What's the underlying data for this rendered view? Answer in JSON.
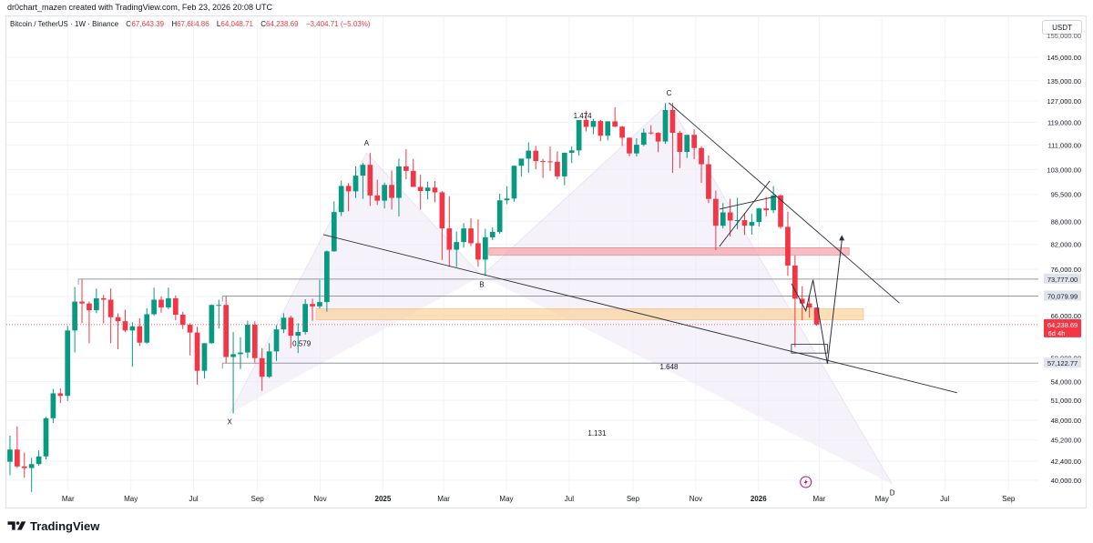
{
  "header": {
    "credit": "dr0chart_mazen created with TradingView.com, Feb 23, 2026 20:08 UTC",
    "symbol": "Bitcoin / TetherUS · 1W · Binance",
    "open_label": "O",
    "open": "67,643.39",
    "high_label": "H",
    "high": "67,684.86",
    "low_label": "L",
    "low": "64,048.71",
    "close_label": "C",
    "close": "64,238.69",
    "change": "−3,404.71 (−5.03%)",
    "currency": "USDT"
  },
  "brand": {
    "name": "TradingView",
    "icon": "tradingview-logo-icon"
  },
  "colors": {
    "up": "#089981",
    "down": "#f23645",
    "grid": "#f0f3fa",
    "pattern_fill": "#ede7f6",
    "resistance_zone": "#f7a3ab",
    "support_zone": "#fbd39a",
    "level_line": "#9598a1",
    "trendline": "#2a2e39",
    "price_tag": "#f23645"
  },
  "chart_data": {
    "type": "candlestick",
    "symbol": "BTCUSDT",
    "interval": "1W",
    "exchange": "Binance",
    "y_axis": {
      "ticks": [
        "145,000.00",
        "135,000.00",
        "127,000.00",
        "119,000.00",
        "111,000.00",
        "103,000.00",
        "95,500.00",
        "88,000.00",
        "82,000.00",
        "76,000.00",
        "70,000.00",
        "66,000.00",
        "58,000.00",
        "54,000.00",
        "51,000.00",
        "48,000.00",
        "45,200.00",
        "42,400.00",
        "40,000.00"
      ],
      "tick_values": [
        145000,
        135000,
        127000,
        119000,
        111000,
        103000,
        95500,
        88000,
        82000,
        76000,
        70000,
        66000,
        58000,
        54000,
        51000,
        48000,
        45200,
        42400,
        40000
      ],
      "top_tick": "155,000.00",
      "top_tick_value": 155000,
      "scale": "log",
      "range": [
        39000,
        158000
      ]
    },
    "x_axis": {
      "ticks": [
        "Mar",
        "May",
        "Jul",
        "Sep",
        "Nov",
        "2025",
        "Mar",
        "May",
        "Jul",
        "Sep",
        "Nov",
        "2026",
        "Mar",
        "May",
        "Jul",
        "Sep"
      ],
      "bold": [
        false,
        false,
        false,
        false,
        false,
        true,
        false,
        false,
        false,
        false,
        false,
        true,
        false,
        false,
        false,
        false
      ],
      "tick_dates": [
        "2024-03-01",
        "2024-05-01",
        "2024-07-01",
        "2024-09-01",
        "2024-11-01",
        "2025-01-01",
        "2025-03-01",
        "2025-05-01",
        "2025-07-01",
        "2025-09-01",
        "2025-11-01",
        "2026-01-01",
        "2026-03-01",
        "2026-05-01",
        "2026-07-01",
        "2026-09-01"
      ],
      "range": [
        "2024-01-01",
        "2026-09-30"
      ]
    },
    "candles": [
      {
        "t": "2024-01-01",
        "o": 42300,
        "h": 45800,
        "l": 40600,
        "c": 43900
      },
      {
        "t": "2024-01-08",
        "o": 43900,
        "h": 47100,
        "l": 41500,
        "c": 41700
      },
      {
        "t": "2024-01-15",
        "o": 41700,
        "h": 43500,
        "l": 40300,
        "c": 41500
      },
      {
        "t": "2024-01-22",
        "o": 41500,
        "h": 42800,
        "l": 38600,
        "c": 42000
      },
      {
        "t": "2024-01-29",
        "o": 42000,
        "h": 43800,
        "l": 41800,
        "c": 43000
      },
      {
        "t": "2024-02-05",
        "o": 43000,
        "h": 48500,
        "l": 42600,
        "c": 48300
      },
      {
        "t": "2024-02-12",
        "o": 48300,
        "h": 52800,
        "l": 47600,
        "c": 52100
      },
      {
        "t": "2024-02-19",
        "o": 52100,
        "h": 52900,
        "l": 50600,
        "c": 51700
      },
      {
        "t": "2024-02-26",
        "o": 51700,
        "h": 64000,
        "l": 50900,
        "c": 63100
      },
      {
        "t": "2024-03-04",
        "o": 63100,
        "h": 72000,
        "l": 59000,
        "c": 68900
      },
      {
        "t": "2024-03-11",
        "o": 68900,
        "h": 73777,
        "l": 64500,
        "c": 68500
      },
      {
        "t": "2024-03-18",
        "o": 68500,
        "h": 68900,
        "l": 60700,
        "c": 67100
      },
      {
        "t": "2024-03-25",
        "o": 67100,
        "h": 71700,
        "l": 66500,
        "c": 69600
      },
      {
        "t": "2024-04-01",
        "o": 69600,
        "h": 70300,
        "l": 64500,
        "c": 69300
      },
      {
        "t": "2024-04-08",
        "o": 69300,
        "h": 71700,
        "l": 60700,
        "c": 65700
      },
      {
        "t": "2024-04-15",
        "o": 65700,
        "h": 66500,
        "l": 59600,
        "c": 64900
      },
      {
        "t": "2024-04-22",
        "o": 64900,
        "h": 67200,
        "l": 62800,
        "c": 63100
      },
      {
        "t": "2024-04-29",
        "o": 63100,
        "h": 64700,
        "l": 56500,
        "c": 63900
      },
      {
        "t": "2024-05-06",
        "o": 63900,
        "h": 65500,
        "l": 60200,
        "c": 60800
      },
      {
        "t": "2024-05-13",
        "o": 60800,
        "h": 67500,
        "l": 60600,
        "c": 66300
      },
      {
        "t": "2024-05-20",
        "o": 66300,
        "h": 71900,
        "l": 66000,
        "c": 69300
      },
      {
        "t": "2024-05-27",
        "o": 69300,
        "h": 70000,
        "l": 66600,
        "c": 67700
      },
      {
        "t": "2024-06-03",
        "o": 67700,
        "h": 71900,
        "l": 67300,
        "c": 69600
      },
      {
        "t": "2024-06-10",
        "o": 69600,
        "h": 70200,
        "l": 65100,
        "c": 66200
      },
      {
        "t": "2024-06-17",
        "o": 66200,
        "h": 66800,
        "l": 63400,
        "c": 64200
      },
      {
        "t": "2024-06-24",
        "o": 64200,
        "h": 64500,
        "l": 58500,
        "c": 62700
      },
      {
        "t": "2024-07-01",
        "o": 62700,
        "h": 63800,
        "l": 53500,
        "c": 55800
      },
      {
        "t": "2024-07-08",
        "o": 55800,
        "h": 60100,
        "l": 54500,
        "c": 60700
      },
      {
        "t": "2024-07-15",
        "o": 60700,
        "h": 68300,
        "l": 60600,
        "c": 68200
      },
      {
        "t": "2024-07-22",
        "o": 68200,
        "h": 69300,
        "l": 63500,
        "c": 68200
      },
      {
        "t": "2024-07-29",
        "o": 68200,
        "h": 70000,
        "l": 57100,
        "c": 58200
      },
      {
        "t": "2024-08-05",
        "o": 58200,
        "h": 62800,
        "l": 49000,
        "c": 58700
      },
      {
        "t": "2024-08-12",
        "o": 58700,
        "h": 61800,
        "l": 56100,
        "c": 59000
      },
      {
        "t": "2024-08-19",
        "o": 59000,
        "h": 65000,
        "l": 58000,
        "c": 64200
      },
      {
        "t": "2024-08-26",
        "o": 64200,
        "h": 64900,
        "l": 57200,
        "c": 58000
      },
      {
        "t": "2024-09-02",
        "o": 58000,
        "h": 59800,
        "l": 52500,
        "c": 54800
      },
      {
        "t": "2024-09-09",
        "o": 54800,
        "h": 60700,
        "l": 54600,
        "c": 59200
      },
      {
        "t": "2024-09-16",
        "o": 59200,
        "h": 64100,
        "l": 57500,
        "c": 63300
      },
      {
        "t": "2024-09-23",
        "o": 63300,
        "h": 66500,
        "l": 62600,
        "c": 65600
      },
      {
        "t": "2024-09-30",
        "o": 65600,
        "h": 66000,
        "l": 59800,
        "c": 62100
      },
      {
        "t": "2024-10-07",
        "o": 62100,
        "h": 64500,
        "l": 58900,
        "c": 62800
      },
      {
        "t": "2024-10-14",
        "o": 62800,
        "h": 69400,
        "l": 62300,
        "c": 68400
      },
      {
        "t": "2024-10-21",
        "o": 68400,
        "h": 69500,
        "l": 65000,
        "c": 67900
      },
      {
        "t": "2024-10-28",
        "o": 67900,
        "h": 73600,
        "l": 67500,
        "c": 68800
      },
      {
        "t": "2024-11-04",
        "o": 68800,
        "h": 80500,
        "l": 66800,
        "c": 80300
      },
      {
        "t": "2024-11-11",
        "o": 80300,
        "h": 93500,
        "l": 80200,
        "c": 90500
      },
      {
        "t": "2024-11-18",
        "o": 90500,
        "h": 99600,
        "l": 89400,
        "c": 98000
      },
      {
        "t": "2024-11-25",
        "o": 98000,
        "h": 98900,
        "l": 90700,
        "c": 96400
      },
      {
        "t": "2024-12-02",
        "o": 96400,
        "h": 104000,
        "l": 94500,
        "c": 101100
      },
      {
        "t": "2024-12-09",
        "o": 101100,
        "h": 105100,
        "l": 94200,
        "c": 104500
      },
      {
        "t": "2024-12-16",
        "o": 104500,
        "h": 108400,
        "l": 92200,
        "c": 95200
      },
      {
        "t": "2024-12-23",
        "o": 95200,
        "h": 99900,
        "l": 92500,
        "c": 93700
      },
      {
        "t": "2024-12-30",
        "o": 93700,
        "h": 99000,
        "l": 91500,
        "c": 98300
      },
      {
        "t": "2025-01-06",
        "o": 98300,
        "h": 102700,
        "l": 91200,
        "c": 94500
      },
      {
        "t": "2025-01-13",
        "o": 94500,
        "h": 106500,
        "l": 89300,
        "c": 104000
      },
      {
        "t": "2025-01-20",
        "o": 104000,
        "h": 109600,
        "l": 100000,
        "c": 102600
      },
      {
        "t": "2025-01-27",
        "o": 102600,
        "h": 106400,
        "l": 97800,
        "c": 97700
      },
      {
        "t": "2025-02-03",
        "o": 97700,
        "h": 101400,
        "l": 91200,
        "c": 96500
      },
      {
        "t": "2025-02-10",
        "o": 96500,
        "h": 99300,
        "l": 94100,
        "c": 97500
      },
      {
        "t": "2025-02-17",
        "o": 97500,
        "h": 99500,
        "l": 93300,
        "c": 96100
      },
      {
        "t": "2025-02-24",
        "o": 96100,
        "h": 96500,
        "l": 78200,
        "c": 86100
      },
      {
        "t": "2025-03-03",
        "o": 86100,
        "h": 95000,
        "l": 76600,
        "c": 80700
      },
      {
        "t": "2025-03-10",
        "o": 80700,
        "h": 85300,
        "l": 76600,
        "c": 82600
      },
      {
        "t": "2025-03-17",
        "o": 82600,
        "h": 87500,
        "l": 81200,
        "c": 86100
      },
      {
        "t": "2025-03-24",
        "o": 86100,
        "h": 88800,
        "l": 81600,
        "c": 82300
      },
      {
        "t": "2025-03-31",
        "o": 82300,
        "h": 88500,
        "l": 76600,
        "c": 78300
      },
      {
        "t": "2025-04-07",
        "o": 78300,
        "h": 86000,
        "l": 74500,
        "c": 83800
      },
      {
        "t": "2025-04-14",
        "o": 83800,
        "h": 86400,
        "l": 83100,
        "c": 85200
      },
      {
        "t": "2025-04-21",
        "o": 85200,
        "h": 95700,
        "l": 84700,
        "c": 93800
      },
      {
        "t": "2025-04-28",
        "o": 93800,
        "h": 97900,
        "l": 92700,
        "c": 94300
      },
      {
        "t": "2025-05-05",
        "o": 94300,
        "h": 104300,
        "l": 93400,
        "c": 104200
      },
      {
        "t": "2025-05-12",
        "o": 104200,
        "h": 105800,
        "l": 100800,
        "c": 106500
      },
      {
        "t": "2025-05-19",
        "o": 106500,
        "h": 111900,
        "l": 102000,
        "c": 109100
      },
      {
        "t": "2025-05-26",
        "o": 109100,
        "h": 110700,
        "l": 103100,
        "c": 105700
      },
      {
        "t": "2025-06-02",
        "o": 105700,
        "h": 106400,
        "l": 100400,
        "c": 105600
      },
      {
        "t": "2025-06-09",
        "o": 105600,
        "h": 110500,
        "l": 102600,
        "c": 105500
      },
      {
        "t": "2025-06-16",
        "o": 105500,
        "h": 108900,
        "l": 100000,
        "c": 100900
      },
      {
        "t": "2025-06-23",
        "o": 100900,
        "h": 108500,
        "l": 98200,
        "c": 108400
      },
      {
        "t": "2025-06-30",
        "o": 108400,
        "h": 110500,
        "l": 105100,
        "c": 109200
      },
      {
        "t": "2025-07-07",
        "o": 109200,
        "h": 119500,
        "l": 107500,
        "c": 119800
      },
      {
        "t": "2025-07-14",
        "o": 119800,
        "h": 123200,
        "l": 115700,
        "c": 117300
      },
      {
        "t": "2025-07-21",
        "o": 117300,
        "h": 120200,
        "l": 114700,
        "c": 119400
      },
      {
        "t": "2025-07-28",
        "o": 119400,
        "h": 119800,
        "l": 112300,
        "c": 114200
      },
      {
        "t": "2025-08-04",
        "o": 114200,
        "h": 119300,
        "l": 112600,
        "c": 119300
      },
      {
        "t": "2025-08-11",
        "o": 119300,
        "h": 124500,
        "l": 117200,
        "c": 117400
      },
      {
        "t": "2025-08-18",
        "o": 117400,
        "h": 117600,
        "l": 110700,
        "c": 113500
      },
      {
        "t": "2025-08-25",
        "o": 113500,
        "h": 113600,
        "l": 107300,
        "c": 108200
      },
      {
        "t": "2025-09-01",
        "o": 108200,
        "h": 113300,
        "l": 107200,
        "c": 111100
      },
      {
        "t": "2025-09-08",
        "o": 111100,
        "h": 116700,
        "l": 110600,
        "c": 115300
      },
      {
        "t": "2025-09-15",
        "o": 115300,
        "h": 117900,
        "l": 114600,
        "c": 115200
      },
      {
        "t": "2025-09-22",
        "o": 115200,
        "h": 115400,
        "l": 108600,
        "c": 112200
      },
      {
        "t": "2025-09-29",
        "o": 112200,
        "h": 126100,
        "l": 111400,
        "c": 123500
      },
      {
        "t": "2025-10-06",
        "o": 123500,
        "h": 126200,
        "l": 102000,
        "c": 115200
      },
      {
        "t": "2025-10-13",
        "o": 115200,
        "h": 115900,
        "l": 103500,
        "c": 108700
      },
      {
        "t": "2025-10-20",
        "o": 108700,
        "h": 114000,
        "l": 106700,
        "c": 114500
      },
      {
        "t": "2025-10-27",
        "o": 114500,
        "h": 116400,
        "l": 106300,
        "c": 110000
      },
      {
        "t": "2025-11-03",
        "o": 110000,
        "h": 110600,
        "l": 98900,
        "c": 104700
      },
      {
        "t": "2025-11-10",
        "o": 104700,
        "h": 107500,
        "l": 93000,
        "c": 94200
      },
      {
        "t": "2025-11-17",
        "o": 94200,
        "h": 96600,
        "l": 80600,
        "c": 86800
      },
      {
        "t": "2025-11-24",
        "o": 86800,
        "h": 93000,
        "l": 86100,
        "c": 90400
      },
      {
        "t": "2025-12-01",
        "o": 90400,
        "h": 94200,
        "l": 84000,
        "c": 88200
      },
      {
        "t": "2025-12-08",
        "o": 88200,
        "h": 94500,
        "l": 85900,
        "c": 88300
      },
      {
        "t": "2025-12-15",
        "o": 88300,
        "h": 90300,
        "l": 84400,
        "c": 86800
      },
      {
        "t": "2025-12-22",
        "o": 86800,
        "h": 90000,
        "l": 84500,
        "c": 87800
      },
      {
        "t": "2025-12-29",
        "o": 87800,
        "h": 91700,
        "l": 86600,
        "c": 91500
      },
      {
        "t": "2026-01-05",
        "o": 91500,
        "h": 94800,
        "l": 89300,
        "c": 91000
      },
      {
        "t": "2026-01-12",
        "o": 91000,
        "h": 97900,
        "l": 90200,
        "c": 95200
      },
      {
        "t": "2026-01-19",
        "o": 95200,
        "h": 95500,
        "l": 86000,
        "c": 86500
      },
      {
        "t": "2026-01-26",
        "o": 86500,
        "h": 90600,
        "l": 74500,
        "c": 76900
      },
      {
        "t": "2026-02-02",
        "o": 76900,
        "h": 79300,
        "l": 60000,
        "c": 69500
      },
      {
        "t": "2026-02-09",
        "o": 69500,
        "h": 72200,
        "l": 65100,
        "c": 68500
      },
      {
        "t": "2026-02-16",
        "o": 68500,
        "h": 70100,
        "l": 65600,
        "c": 67643.39
      },
      {
        "t": "2026-02-23",
        "o": 67643.39,
        "h": 67684.86,
        "l": 64048.71,
        "c": 64238.69
      }
    ],
    "price_labels": [
      {
        "text": "73,777.00",
        "value": 73777,
        "style": "level"
      },
      {
        "text": "70,079.99",
        "value": 70079.99,
        "style": "level"
      },
      {
        "text": "64,238.69",
        "sub": "6d 4h",
        "value": 64238.69,
        "style": "current"
      },
      {
        "text": "57,122.77",
        "value": 57122.77,
        "style": "level"
      }
    ],
    "horizontal_levels": [
      {
        "value": 73777,
        "from": "2024-03-11",
        "to": "2026-09-30"
      },
      {
        "value": 70079.99,
        "from": "2024-07-29",
        "to": "2026-09-30"
      },
      {
        "value": 57122.77,
        "from": "2024-07-29",
        "to": "2026-09-30"
      }
    ],
    "zones": [
      {
        "name": "resistance",
        "from": "2025-04-14",
        "to": "2026-03-30",
        "low": 79400,
        "high": 81200
      },
      {
        "name": "support",
        "from": "2024-10-28",
        "to": "2026-04-13",
        "low": 65200,
        "high": 67400
      }
    ],
    "pattern_points": [
      {
        "label": "X",
        "t": "2024-08-05",
        "v": 49000
      },
      {
        "label": "A",
        "t": "2024-12-16",
        "v": 108400
      },
      {
        "label": "B",
        "t": "2025-04-07",
        "v": 74500
      },
      {
        "label": "C",
        "t": "2025-10-06",
        "v": 126200
      },
      {
        "label": "D",
        "t": "2026-05-11",
        "v": 39500
      }
    ],
    "pattern_label_offsets": {
      "X": "below",
      "A": "above",
      "B": "below",
      "C": "above",
      "D": "below"
    },
    "ratios": [
      {
        "text": "0.579",
        "t": "2024-10-14",
        "v": 60200
      },
      {
        "text": "1.474",
        "t": "2025-07-14",
        "v": 120500
      },
      {
        "text": "1.648",
        "t": "2025-10-06",
        "v": 56100
      },
      {
        "text": "1.131",
        "t": "2025-07-28",
        "v": 45800
      }
    ],
    "trendlines": [
      {
        "t1": "2024-11-04",
        "v1": 84500,
        "t2": "2026-07-13",
        "v2": 52200
      },
      {
        "t1": "2025-10-06",
        "v1": 126200,
        "t2": "2026-05-18",
        "v2": 68600
      },
      {
        "t1": "2025-11-24",
        "v1": 81500,
        "t2": "2026-01-12",
        "v2": 99500
      },
      {
        "t1": "2025-11-24",
        "v1": 91300,
        "t2": "2026-01-19",
        "v2": 95000
      }
    ],
    "projection_path": [
      {
        "t": "2026-02-02",
        "v": 72800
      },
      {
        "t": "2026-02-16",
        "v": 67000
      },
      {
        "t": "2026-02-23",
        "v": 73600
      },
      {
        "t": "2026-03-09",
        "v": 57000
      },
      {
        "t": "2026-03-23",
        "v": 83000
      }
    ],
    "projection_box": {
      "from": "2026-02-02",
      "to": "2026-03-09",
      "top": 60500,
      "bottom": 58900
    }
  }
}
